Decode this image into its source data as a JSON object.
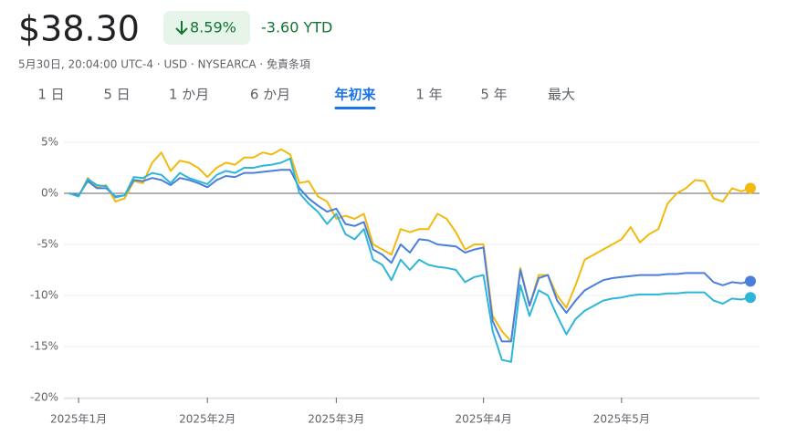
{
  "header": {
    "price": "$38.30",
    "change_percent": "8.59%",
    "change_ytd": "-3.60 YTD",
    "info": "5月30日, 20:04:00 UTC-4 · USD · NYSEARCA · 免責条項"
  },
  "tabs": [
    "1 日",
    "5 日",
    "1 か月",
    "6 か月",
    "年初来",
    "1 年",
    "5 年",
    "最大"
  ],
  "selected_tab": 4,
  "chart_data": {
    "type": "line",
    "categories": [
      null,
      "2025年1月",
      null,
      null,
      null,
      null,
      null,
      null,
      null,
      null,
      null,
      null,
      null,
      null,
      null,
      "2025年2月",
      null,
      null,
      null,
      null,
      null,
      null,
      null,
      null,
      null,
      null,
      null,
      null,
      null,
      "2025年3月",
      null,
      null,
      null,
      null,
      null,
      null,
      null,
      null,
      null,
      null,
      null,
      null,
      null,
      null,
      null,
      "2025年4月",
      null,
      null,
      null,
      null,
      null,
      null,
      null,
      null,
      null,
      null,
      null,
      null,
      null,
      null,
      "2025年5月",
      null,
      null,
      null,
      null,
      null,
      null,
      null,
      null,
      null,
      null,
      null,
      null,
      null,
      null
    ],
    "series": [
      {
        "name": "yellow",
        "color": "#f2b90f",
        "values": [
          0,
          -0.3,
          1.5,
          0.6,
          0.8,
          -0.8,
          -0.5,
          1.2,
          1.0,
          3.0,
          4.0,
          2.2,
          3.2,
          3.0,
          2.5,
          1.6,
          2.5,
          3.0,
          2.8,
          3.5,
          3.5,
          4.0,
          3.8,
          4.3,
          3.8,
          1.0,
          1.2,
          -0.3,
          -0.8,
          -2.5,
          -2.2,
          -2.5,
          -2.0,
          -5.0,
          -5.5,
          -6.0,
          -3.5,
          -3.8,
          -3.5,
          -3.5,
          -2.0,
          -2.5,
          -3.8,
          -5.5,
          -5.0,
          -5.0,
          -12.0,
          -13.5,
          -14.5,
          -7.3,
          -11.0,
          -8.0,
          -8.0,
          -10.0,
          -11.2,
          -9.0,
          -6.5,
          -6.0,
          -5.5,
          -5.0,
          -4.5,
          -3.3,
          -4.8,
          -4.0,
          -3.5,
          -1.0,
          0.0,
          0.5,
          1.3,
          1.2,
          -0.5,
          -0.8,
          0.5,
          0.2,
          0.5
        ]
      },
      {
        "name": "blue",
        "color": "#4a7fdc",
        "values": [
          0,
          -0.2,
          1.2,
          0.5,
          0.5,
          -0.3,
          -0.2,
          1.3,
          1.2,
          1.5,
          1.3,
          0.8,
          1.5,
          1.3,
          1.0,
          0.6,
          1.3,
          1.7,
          1.6,
          2.0,
          2.0,
          2.1,
          2.2,
          2.3,
          2.3,
          0.5,
          -0.5,
          -1.2,
          -1.8,
          -1.5,
          -3.0,
          -3.2,
          -2.8,
          -5.5,
          -6.0,
          -6.8,
          -5.0,
          -5.8,
          -4.5,
          -4.6,
          -5.0,
          -5.1,
          -5.2,
          -5.8,
          -5.5,
          -5.3,
          -12.5,
          -14.5,
          -14.5,
          -7.5,
          -11.0,
          -8.3,
          -8.0,
          -10.5,
          -11.7,
          -10.5,
          -9.5,
          -9.0,
          -8.5,
          -8.3,
          -8.2,
          -8.1,
          -8.0,
          -8.0,
          -8.0,
          -7.9,
          -7.9,
          -7.8,
          -7.8,
          -7.8,
          -8.7,
          -9.0,
          -8.7,
          -8.8,
          -8.6
        ]
      },
      {
        "name": "cyan",
        "color": "#2db6d8",
        "values": [
          0,
          -0.3,
          1.4,
          0.8,
          0.7,
          -0.4,
          -0.2,
          1.6,
          1.5,
          2.0,
          1.8,
          1.0,
          2.0,
          1.5,
          1.2,
          0.9,
          1.8,
          2.2,
          2.0,
          2.5,
          2.5,
          2.7,
          2.8,
          3.0,
          3.4,
          0.0,
          -1.0,
          -1.8,
          -3.0,
          -2.0,
          -4.0,
          -4.5,
          -3.5,
          -6.5,
          -7.0,
          -8.5,
          -6.5,
          -7.5,
          -6.5,
          -7.0,
          -7.2,
          -7.3,
          -7.5,
          -8.7,
          -8.2,
          -8.0,
          -13.5,
          -16.3,
          -16.5,
          -9.0,
          -12.0,
          -9.5,
          -10.0,
          -12.0,
          -13.8,
          -12.3,
          -11.5,
          -11.0,
          -10.5,
          -10.3,
          -10.2,
          -10.0,
          -9.9,
          -9.9,
          -9.9,
          -9.8,
          -9.8,
          -9.7,
          -9.7,
          -9.7,
          -10.5,
          -10.8,
          -10.3,
          -10.4,
          -10.2
        ]
      }
    ],
    "ylim": [
      -20,
      5
    ],
    "yticks": [
      {
        "value": 5,
        "label": "5%"
      },
      {
        "value": 0,
        "label": "0%"
      },
      {
        "value": -5,
        "label": "-5%"
      },
      {
        "value": -10,
        "label": "-10%"
      },
      {
        "value": -15,
        "label": "-15%"
      },
      {
        "value": -20,
        "label": "-20%"
      }
    ],
    "grid": true
  }
}
